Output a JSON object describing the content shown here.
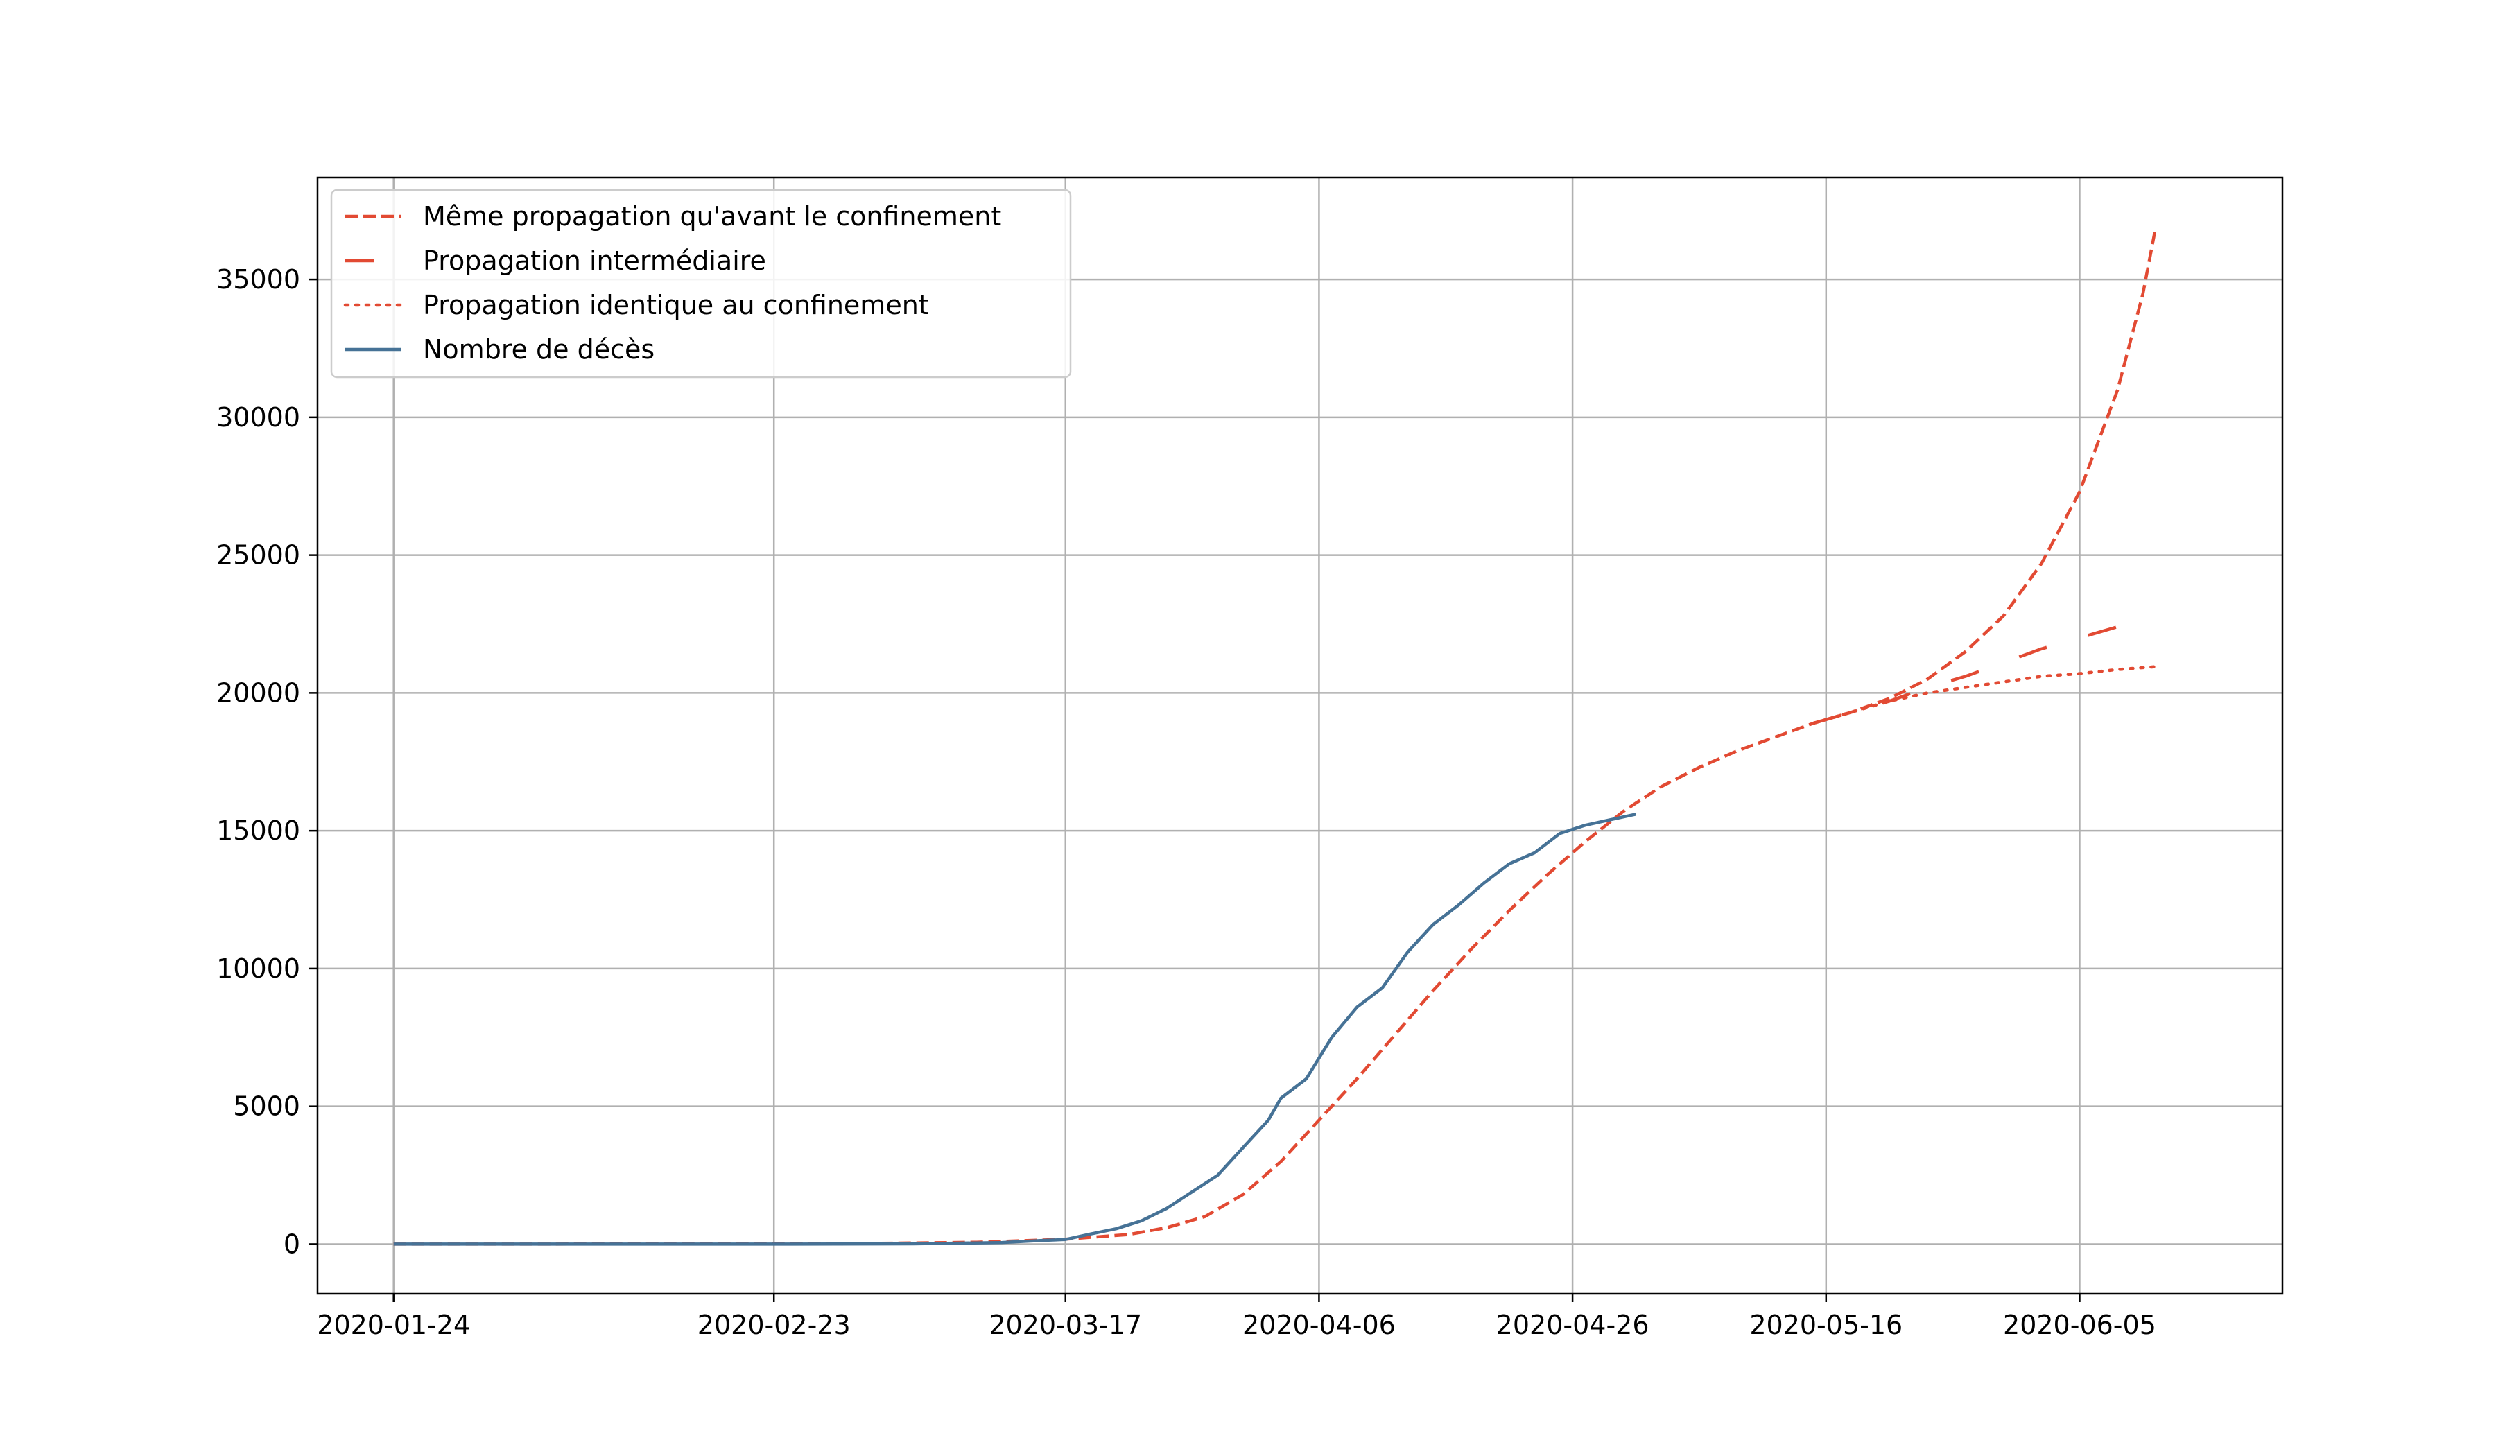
{
  "chart_data": {
    "type": "line",
    "title": "",
    "xlabel": "",
    "ylabel": "",
    "x_axis": {
      "type": "date",
      "range": [
        "2020-01-18",
        "2020-06-21"
      ],
      "ticks": [
        "2020-01-24",
        "2020-02-23",
        "2020-03-17",
        "2020-04-06",
        "2020-04-26",
        "2020-05-16",
        "2020-06-05"
      ]
    },
    "y_axis": {
      "range": [
        -1800,
        38700
      ],
      "ticks": [
        0,
        5000,
        10000,
        15000,
        20000,
        25000,
        30000,
        35000
      ],
      "tick_labels": [
        "0",
        "5000",
        "10000",
        "15000",
        "20000",
        "25000",
        "30000",
        "35000"
      ]
    },
    "grid": true,
    "legend": {
      "placement": "top-left",
      "entries": [
        "Même propagation qu'avant le confinement",
        "Propagation intermédiaire",
        "Propagation identique au confinement",
        "Nombre de décès"
      ]
    },
    "colors": {
      "projection": "#e24a33",
      "deaths": "#467296",
      "grid": "#b0b0b0"
    },
    "series": [
      {
        "name": "Même propagation qu'avant le confinement",
        "style": "dashed",
        "color": "#e24a33",
        "points": [
          [
            "2020-01-24",
            0
          ],
          [
            "2020-02-23",
            5
          ],
          [
            "2020-03-01",
            20
          ],
          [
            "2020-03-10",
            70
          ],
          [
            "2020-03-17",
            180
          ],
          [
            "2020-03-22",
            350
          ],
          [
            "2020-03-25",
            600
          ],
          [
            "2020-03-28",
            1000
          ],
          [
            "2020-03-31",
            1800
          ],
          [
            "2020-04-03",
            3000
          ],
          [
            "2020-04-06",
            4500
          ],
          [
            "2020-04-09",
            6000
          ],
          [
            "2020-04-12",
            7600
          ],
          [
            "2020-04-15",
            9200
          ],
          [
            "2020-04-18",
            10700
          ],
          [
            "2020-04-21",
            12100
          ],
          [
            "2020-04-24",
            13400
          ],
          [
            "2020-04-27",
            14600
          ],
          [
            "2020-04-30",
            15700
          ],
          [
            "2020-05-03",
            16600
          ],
          [
            "2020-05-06",
            17300
          ],
          [
            "2020-05-09",
            17900
          ],
          [
            "2020-05-12",
            18400
          ],
          [
            "2020-05-15",
            18900
          ],
          [
            "2020-05-18",
            19300
          ],
          [
            "2020-05-21",
            19800
          ],
          [
            "2020-05-24",
            20500
          ],
          [
            "2020-05-27",
            21500
          ],
          [
            "2020-05-30",
            22800
          ],
          [
            "2020-06-02",
            24700
          ],
          [
            "2020-06-05",
            27300
          ],
          [
            "2020-06-08",
            31000
          ],
          [
            "2020-06-10",
            34500
          ],
          [
            "2020-06-11",
            36900
          ]
        ]
      },
      {
        "name": "Propagation intermédiaire",
        "style": "long-dashed",
        "color": "#e24a33",
        "points": [
          [
            "2020-05-15",
            18900
          ],
          [
            "2020-05-18",
            19300
          ],
          [
            "2020-05-21",
            19700
          ],
          [
            "2020-05-24",
            20200
          ],
          [
            "2020-05-27",
            20600
          ],
          [
            "2020-05-30",
            21100
          ],
          [
            "2020-06-02",
            21600
          ],
          [
            "2020-06-05",
            22000
          ],
          [
            "2020-06-08",
            22400
          ],
          [
            "2020-06-09",
            22600
          ]
        ]
      },
      {
        "name": "Propagation identique au confinement",
        "style": "dotted",
        "color": "#e24a33",
        "points": [
          [
            "2020-05-15",
            18900
          ],
          [
            "2020-05-18",
            19300
          ],
          [
            "2020-05-21",
            19700
          ],
          [
            "2020-05-24",
            20000
          ],
          [
            "2020-05-27",
            20200
          ],
          [
            "2020-05-30",
            20400
          ],
          [
            "2020-06-02",
            20600
          ],
          [
            "2020-06-05",
            20700
          ],
          [
            "2020-06-08",
            20850
          ],
          [
            "2020-06-11",
            20950
          ]
        ]
      },
      {
        "name": "Nombre de décès",
        "style": "solid",
        "color": "#467296",
        "points": [
          [
            "2020-01-24",
            0
          ],
          [
            "2020-02-23",
            0
          ],
          [
            "2020-03-05",
            10
          ],
          [
            "2020-03-12",
            60
          ],
          [
            "2020-03-15",
            130
          ],
          [
            "2020-03-17",
            170
          ],
          [
            "2020-03-19",
            370
          ],
          [
            "2020-03-21",
            560
          ],
          [
            "2020-03-23",
            850
          ],
          [
            "2020-03-25",
            1300
          ],
          [
            "2020-03-27",
            1900
          ],
          [
            "2020-03-29",
            2500
          ],
          [
            "2020-03-31",
            3500
          ],
          [
            "2020-04-02",
            4500
          ],
          [
            "2020-04-03",
            5300
          ],
          [
            "2020-04-05",
            6000
          ],
          [
            "2020-04-07",
            7500
          ],
          [
            "2020-04-09",
            8600
          ],
          [
            "2020-04-11",
            9300
          ],
          [
            "2020-04-13",
            10600
          ],
          [
            "2020-04-15",
            11600
          ],
          [
            "2020-04-17",
            12300
          ],
          [
            "2020-04-19",
            13100
          ],
          [
            "2020-04-21",
            13800
          ],
          [
            "2020-04-23",
            14200
          ],
          [
            "2020-04-25",
            14900
          ],
          [
            "2020-04-27",
            15200
          ],
          [
            "2020-04-29",
            15400
          ],
          [
            "2020-05-01",
            15600
          ]
        ]
      }
    ]
  }
}
